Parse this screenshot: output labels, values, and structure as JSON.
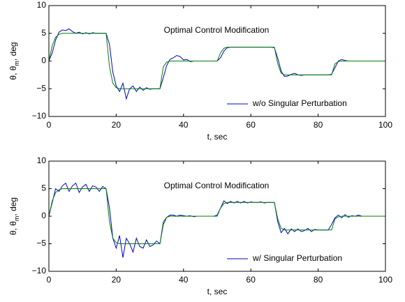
{
  "chart_data": [
    {
      "type": "line",
      "annotation": "Optimal Control Modification",
      "x_label": "t, sec",
      "y_label_parts": [
        "θ, θ",
        "m",
        ", deg"
      ],
      "xlim": [
        0,
        100
      ],
      "ylim": [
        -10,
        10
      ],
      "xticks": [
        0,
        20,
        40,
        60,
        80,
        100
      ],
      "yticks": [
        {
          "value": -10,
          "label": "−10"
        },
        {
          "value": -5,
          "label": "−5"
        },
        0,
        5,
        10
      ],
      "legend_position": "lower right",
      "x": [
        0,
        1,
        2,
        3,
        4,
        5,
        6,
        7,
        8,
        9,
        10,
        11,
        12,
        13,
        14,
        15,
        16,
        17,
        18,
        19,
        20,
        21,
        22,
        23,
        24,
        25,
        26,
        27,
        28,
        29,
        30,
        31,
        32,
        33,
        34,
        35,
        36,
        37,
        38,
        39,
        40,
        41,
        42,
        43,
        44,
        45,
        46,
        47,
        48,
        49,
        50,
        51,
        52,
        53,
        54,
        55,
        56,
        57,
        58,
        59,
        60,
        61,
        62,
        63,
        64,
        65,
        66,
        67,
        68,
        69,
        70,
        71,
        72,
        73,
        74,
        75,
        76,
        77,
        78,
        79,
        80,
        81,
        82,
        83,
        84,
        85,
        86,
        87,
        88,
        89,
        90,
        91,
        92,
        93,
        94,
        95,
        96,
        97,
        98,
        99,
        100
      ],
      "series": [
        {
          "name": "w/o Singular Perturbation",
          "color": "#0000cc",
          "values": [
            0,
            1.5,
            3.8,
            5.2,
            5.6,
            5.5,
            5.8,
            5.3,
            5,
            5.2,
            4.9,
            5.1,
            4.9,
            5.1,
            5,
            5,
            5,
            5,
            3,
            -2,
            -4.5,
            -5.5,
            -4,
            -6.8,
            -5,
            -4.5,
            -5.5,
            -4.7,
            -5.3,
            -4.8,
            -5.1,
            -5,
            -5,
            -5,
            -3,
            -0.8,
            0.3,
            0.6,
            1,
            0.8,
            0.2,
            0.3,
            -0.1,
            0,
            0,
            0,
            0,
            0,
            0,
            0,
            0,
            0.6,
            1.8,
            2.4,
            2.5,
            2.5,
            2.5,
            2.5,
            2.5,
            2.5,
            2.5,
            2.5,
            2.5,
            2.5,
            2.5,
            2.5,
            2.5,
            2.4,
            0.5,
            -1.8,
            -2.8,
            -2.7,
            -2.4,
            -2.2,
            -2.5,
            -2.6,
            -2.5,
            -2.5,
            -2.5,
            -2.5,
            -2.5,
            -2.5,
            -2.5,
            -2.5,
            -2.4,
            -1.2,
            0,
            0.3,
            0.1,
            0,
            0,
            0,
            0,
            0,
            0,
            0,
            0,
            0,
            0,
            0,
            0
          ]
        },
        {
          "color": "#008000",
          "values": [
            0,
            2.8,
            4.3,
            4.8,
            5,
            5,
            5,
            5,
            5,
            5,
            5,
            5,
            5,
            5,
            5,
            5,
            5,
            5,
            -1,
            -4,
            -4.8,
            -5,
            -5,
            -5,
            -5,
            -5,
            -5,
            -5,
            -5,
            -5,
            -5,
            -5,
            -5,
            -5,
            -1,
            -0.2,
            0,
            0,
            0,
            0,
            0,
            0,
            0,
            0,
            0,
            0,
            0,
            0,
            0,
            0,
            0,
            1.5,
            2.3,
            2.5,
            2.5,
            2.5,
            2.5,
            2.5,
            2.5,
            2.5,
            2.5,
            2.5,
            2.5,
            2.5,
            2.5,
            2.5,
            2.5,
            2.5,
            -0.5,
            -2.2,
            -2.5,
            -2.5,
            -2.5,
            -2.5,
            -2.5,
            -2.5,
            -2.5,
            -2.5,
            -2.5,
            -2.5,
            -2.5,
            -2.5,
            -2.5,
            -2.5,
            -2.5,
            -0.5,
            -0.1,
            0,
            0,
            0,
            0,
            0,
            0,
            0,
            0,
            0,
            0,
            0,
            0,
            0,
            0
          ]
        }
      ]
    },
    {
      "type": "line",
      "annotation": "Optimal Control Modification",
      "x_label": "t, sec",
      "y_label_parts": [
        "θ, θ",
        "m",
        ", deg"
      ],
      "xlim": [
        0,
        100
      ],
      "ylim": [
        -10,
        10
      ],
      "xticks": [
        0,
        20,
        40,
        60,
        80,
        100
      ],
      "yticks": [
        {
          "value": -10,
          "label": "−10"
        },
        {
          "value": -5,
          "label": "−5"
        },
        0,
        5,
        10
      ],
      "legend_position": "lower right",
      "x": [
        0,
        1,
        2,
        3,
        4,
        5,
        6,
        7,
        8,
        9,
        10,
        11,
        12,
        13,
        14,
        15,
        16,
        17,
        18,
        19,
        20,
        21,
        22,
        23,
        24,
        25,
        26,
        27,
        28,
        29,
        30,
        31,
        32,
        33,
        34,
        35,
        36,
        37,
        38,
        39,
        40,
        41,
        42,
        43,
        44,
        45,
        46,
        47,
        48,
        49,
        50,
        51,
        52,
        53,
        54,
        55,
        56,
        57,
        58,
        59,
        60,
        61,
        62,
        63,
        64,
        65,
        66,
        67,
        68,
        69,
        70,
        71,
        72,
        73,
        74,
        75,
        76,
        77,
        78,
        79,
        80,
        81,
        82,
        83,
        84,
        85,
        86,
        87,
        88,
        89,
        90,
        91,
        92,
        93,
        94,
        95,
        96,
        97,
        98,
        99,
        100
      ],
      "series": [
        {
          "name": "w/ Singular Perturbation",
          "color": "#0000cc",
          "values": [
            0,
            2.5,
            5,
            4.5,
            5.5,
            6,
            4.5,
            5.5,
            6,
            4.3,
            5.3,
            5.8,
            4.5,
            5.5,
            5.3,
            4.5,
            5.4,
            5,
            1.5,
            -4,
            -5.8,
            -3.5,
            -7.5,
            -4,
            -5,
            -6.5,
            -4,
            -5.5,
            -5.8,
            -4.3,
            -5.5,
            -5.2,
            -4.5,
            -5,
            -1.5,
            -0.2,
            0.2,
            0.2,
            0,
            0.2,
            0.1,
            0,
            0.1,
            -0.1,
            0,
            0,
            0,
            0,
            0,
            0,
            0.2,
            1.5,
            2.8,
            2.3,
            2.7,
            2.4,
            2.7,
            2.4,
            2.7,
            2.4,
            2.6,
            2.5,
            2.5,
            2.6,
            2.4,
            2.5,
            2.5,
            2.5,
            -1,
            -3,
            -2.2,
            -3.2,
            -2.3,
            -2.8,
            -2.3,
            -2.8,
            -2.6,
            -2.2,
            -2.8,
            -2.4,
            -2.5,
            -2.5,
            -2.5,
            -2.5,
            -1.5,
            -0.3,
            0.2,
            -0.3,
            0.3,
            -0.2,
            0.1,
            0,
            0.2,
            0,
            0,
            0,
            0,
            0,
            0,
            0,
            0
          ]
        },
        {
          "color": "#008000",
          "values": [
            0,
            2.8,
            4.3,
            4.8,
            5,
            5,
            5,
            5,
            5,
            5,
            5,
            5,
            5,
            5,
            5,
            5,
            5,
            5,
            -1,
            -4,
            -4.8,
            -5,
            -5,
            -5,
            -5,
            -5,
            -5,
            -5,
            -5,
            -5,
            -5,
            -5,
            -5,
            -5,
            -1,
            -0.2,
            0,
            0,
            0,
            0,
            0,
            0,
            0,
            0,
            0,
            0,
            0,
            0,
            0,
            0,
            0,
            1.5,
            2.3,
            2.5,
            2.5,
            2.5,
            2.5,
            2.5,
            2.5,
            2.5,
            2.5,
            2.5,
            2.5,
            2.5,
            2.5,
            2.5,
            2.5,
            2.5,
            -0.5,
            -2.2,
            -2.5,
            -2.5,
            -2.5,
            -2.5,
            -2.5,
            -2.5,
            -2.5,
            -2.5,
            -2.5,
            -2.5,
            -2.5,
            -2.5,
            -2.5,
            -2.5,
            -2.5,
            -0.5,
            -0.1,
            0,
            0,
            0,
            0,
            0,
            0,
            0,
            0,
            0,
            0,
            0,
            0,
            0,
            0
          ]
        }
      ]
    }
  ]
}
